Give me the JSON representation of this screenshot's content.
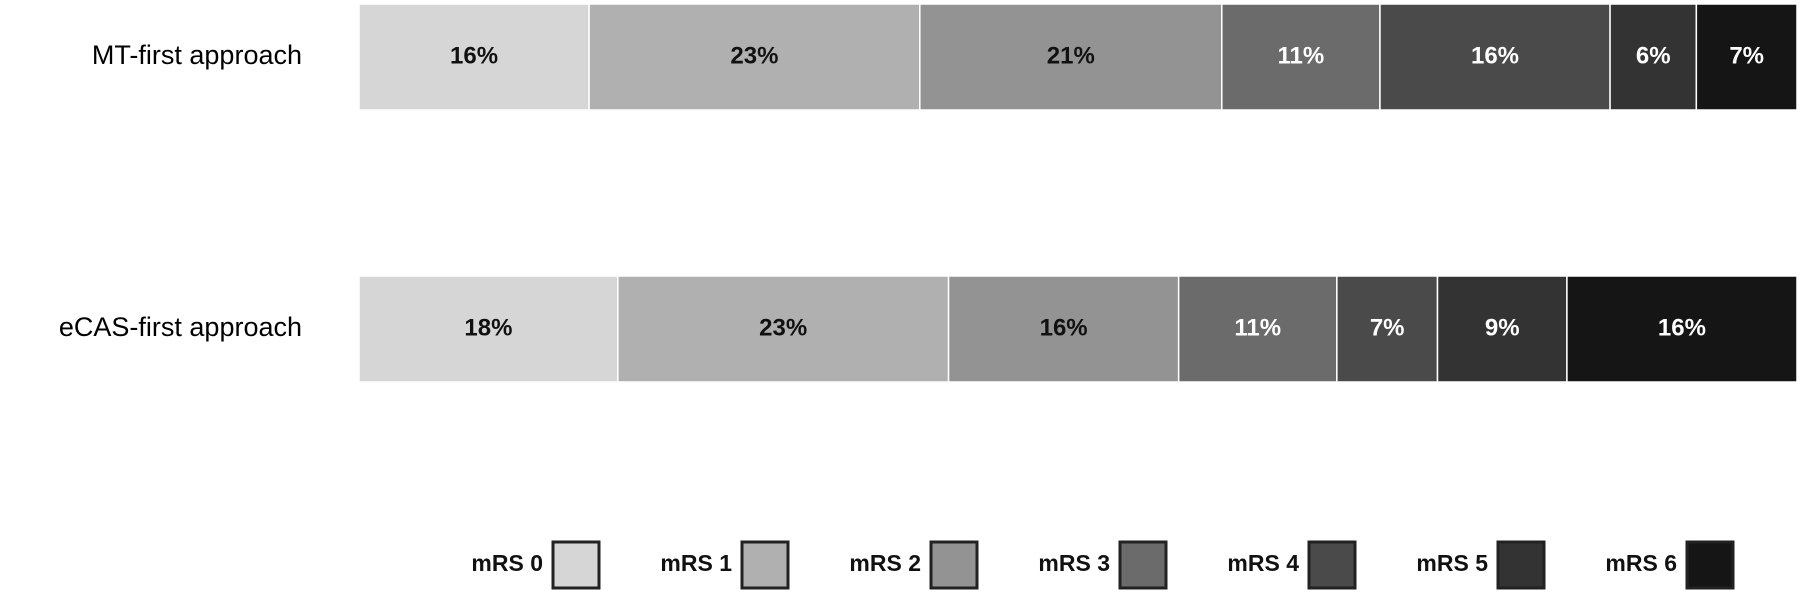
{
  "chart_data": {
    "type": "stacked-bar-horizontal",
    "categories": [
      "MT-first approach",
      "eCAS-first approach"
    ],
    "xlim": [
      0,
      100
    ],
    "legend": "bottom",
    "series": [
      {
        "name": "mRS 0",
        "color": "#d6d6d6",
        "values": [
          16,
          18
        ],
        "value_labels": [
          "16%",
          "18%"
        ]
      },
      {
        "name": "mRS 1",
        "color": "#b0b0b0",
        "values": [
          23,
          23
        ],
        "value_labels": [
          "23%",
          "23%"
        ]
      },
      {
        "name": "mRS 2",
        "color": "#939393",
        "values": [
          21,
          16
        ],
        "value_labels": [
          "21%",
          "16%"
        ]
      },
      {
        "name": "mRS 3",
        "color": "#6b6b6b",
        "values": [
          11,
          11
        ],
        "value_labels": [
          "11%",
          "11%"
        ]
      },
      {
        "name": "mRS 4",
        "color": "#4a4a4a",
        "values": [
          16,
          7
        ],
        "value_labels": [
          "16%",
          "7%"
        ]
      },
      {
        "name": "mRS 5",
        "color": "#333333",
        "values": [
          6,
          9
        ],
        "value_labels": [
          "6%",
          "9%"
        ]
      },
      {
        "name": "mRS 6",
        "color": "#151515",
        "values": [
          7,
          16
        ],
        "value_labels": [
          "7%",
          "16%"
        ]
      }
    ]
  }
}
